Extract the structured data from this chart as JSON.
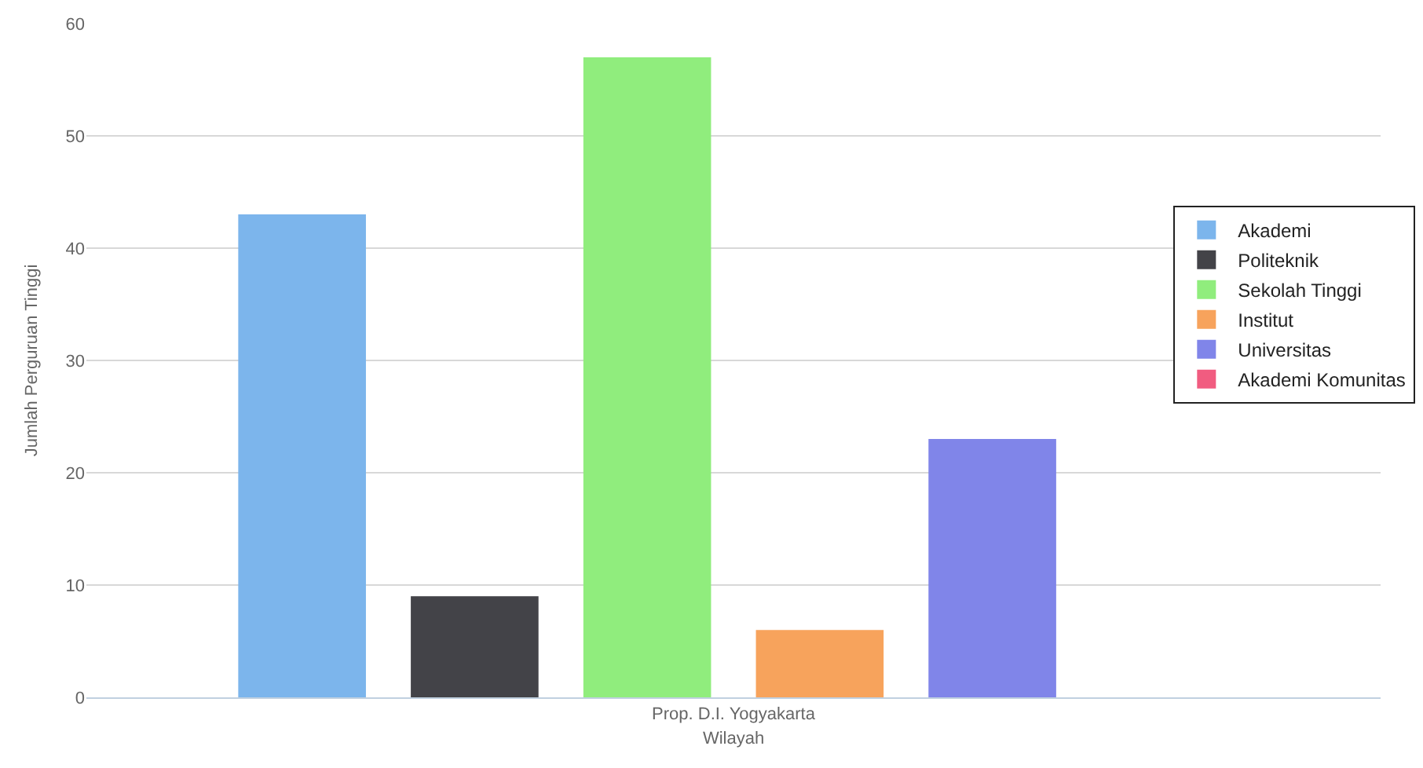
{
  "chart_data": {
    "type": "bar",
    "categories": [
      "Prop. D.I. Yogyakarta"
    ],
    "xlabel": "Wilayah",
    "ylabel": "Jumlah Perguruan Tinggi",
    "series": [
      {
        "name": "Akademi",
        "color": "#7cb5ec",
        "values": [
          43
        ]
      },
      {
        "name": "Politeknik",
        "color": "#434348",
        "values": [
          9
        ]
      },
      {
        "name": "Sekolah Tinggi",
        "color": "#90ed7d",
        "values": [
          57
        ]
      },
      {
        "name": "Institut",
        "color": "#f7a35c",
        "values": [
          6
        ]
      },
      {
        "name": "Universitas",
        "color": "#8085e9",
        "values": [
          23
        ]
      },
      {
        "name": "Akademi Komunitas",
        "color": "#f15c80",
        "values": [
          0
        ]
      }
    ],
    "ylim": [
      0,
      60
    ],
    "yticks": [
      0,
      10,
      20,
      30,
      40,
      50,
      60
    ],
    "grid": "y",
    "legend": "right"
  }
}
